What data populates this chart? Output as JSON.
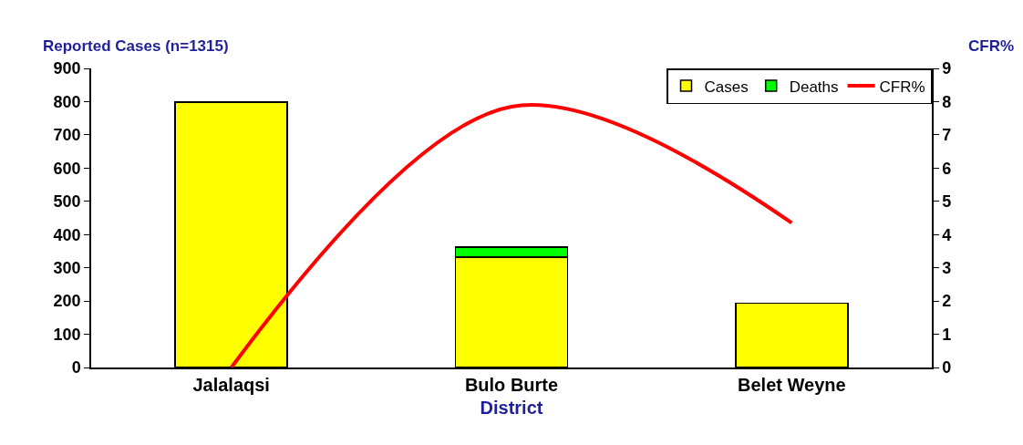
{
  "chart_data": {
    "type": "bar",
    "stacked": true,
    "ylabel": "Reported Cases (n=1315)",
    "y2label": "CFR%",
    "xlabel": "District",
    "categories": [
      "Jalalaqsi",
      "Bulo Burte",
      "Belet Weyne"
    ],
    "series": [
      {
        "name": "Cases",
        "color": "#ffff00",
        "values": [
          798,
          332,
          193
        ]
      },
      {
        "name": "Deaths",
        "color": "#00ff00",
        "values": [
          null,
          30,
          null
        ]
      },
      {
        "name": "CFR%",
        "type": "line",
        "axis": "y2",
        "color": "#ff0000",
        "values": [
          0,
          7.85,
          4.35
        ]
      }
    ],
    "ylim": [
      0,
      900
    ],
    "yticks": [
      0,
      100,
      200,
      300,
      400,
      500,
      600,
      700,
      800,
      900
    ],
    "y2lim": [
      0,
      9
    ],
    "y2ticks": [
      0,
      1,
      2,
      3,
      4,
      5,
      6,
      7,
      8,
      9
    ],
    "grid": false,
    "legend": "top right"
  }
}
